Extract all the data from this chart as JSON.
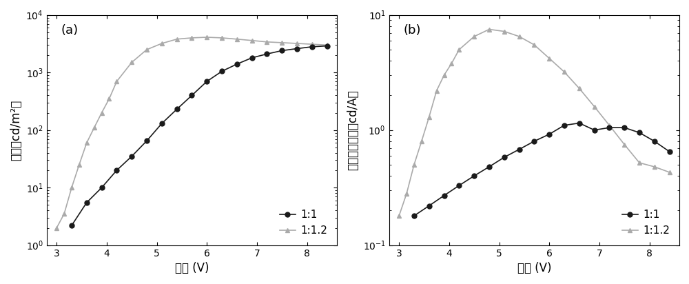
{
  "panel_a": {
    "label": "(a)",
    "xlabel": "电压 (V)",
    "ylabel_parts": [
      "亮度（cd/m",
      "2",
      "）"
    ],
    "ylabel_plain": "亮度（cd/m²）",
    "xlim": [
      2.8,
      8.6
    ],
    "ylim_log": [
      1,
      10000
    ],
    "xticks": [
      3,
      4,
      5,
      6,
      7,
      8
    ],
    "legend_11": "1:1",
    "legend_112": "1:1.2",
    "series_11_x": [
      3.3,
      3.6,
      3.9,
      4.2,
      4.5,
      4.8,
      5.1,
      5.4,
      5.7,
      6.0,
      6.3,
      6.6,
      6.9,
      7.2,
      7.5,
      7.8,
      8.1,
      8.4
    ],
    "series_11_y": [
      2.2,
      5.5,
      10,
      20,
      35,
      65,
      130,
      230,
      400,
      700,
      1050,
      1400,
      1800,
      2100,
      2400,
      2600,
      2800,
      2900
    ],
    "series_112_x": [
      3.0,
      3.15,
      3.3,
      3.45,
      3.6,
      3.75,
      3.9,
      4.05,
      4.2,
      4.5,
      4.8,
      5.1,
      5.4,
      5.7,
      6.0,
      6.3,
      6.6,
      6.9,
      7.2,
      7.5,
      7.8,
      8.1,
      8.4
    ],
    "series_112_y": [
      2.0,
      3.5,
      10,
      25,
      60,
      110,
      200,
      350,
      700,
      1500,
      2500,
      3200,
      3800,
      4000,
      4100,
      4000,
      3800,
      3600,
      3400,
      3300,
      3200,
      3100,
      3000
    ]
  },
  "panel_b": {
    "label": "(b)",
    "xlabel": "电压 (V)",
    "ylabel_plain": "电致发光效率（cd/A）",
    "xlim": [
      2.8,
      8.6
    ],
    "ylim_log": [
      0.1,
      10
    ],
    "xticks": [
      3,
      4,
      5,
      6,
      7,
      8
    ],
    "legend_11": "1:1",
    "legend_112": "1:1.2",
    "series_11_x": [
      3.3,
      3.6,
      3.9,
      4.2,
      4.5,
      4.8,
      5.1,
      5.4,
      5.7,
      6.0,
      6.3,
      6.6,
      6.9,
      7.2,
      7.5,
      7.8,
      8.1,
      8.4
    ],
    "series_11_y": [
      0.18,
      0.22,
      0.27,
      0.33,
      0.4,
      0.48,
      0.58,
      0.68,
      0.8,
      0.92,
      1.1,
      1.15,
      1.0,
      1.05,
      1.05,
      0.95,
      0.8,
      0.65
    ],
    "series_112_x": [
      3.0,
      3.15,
      3.3,
      3.45,
      3.6,
      3.75,
      3.9,
      4.05,
      4.2,
      4.5,
      4.8,
      5.1,
      5.4,
      5.7,
      6.0,
      6.3,
      6.6,
      6.9,
      7.2,
      7.5,
      7.8,
      8.1,
      8.4
    ],
    "series_112_y": [
      0.18,
      0.28,
      0.5,
      0.8,
      1.3,
      2.2,
      3.0,
      3.8,
      5.0,
      6.5,
      7.5,
      7.2,
      6.5,
      5.5,
      4.2,
      3.2,
      2.3,
      1.6,
      1.1,
      0.75,
      0.52,
      0.48,
      0.43
    ]
  },
  "color_11": "#1a1a1a",
  "color_112": "#aaaaaa",
  "bg_color": "#ffffff",
  "fig_width": 10.0,
  "fig_height": 4.12
}
